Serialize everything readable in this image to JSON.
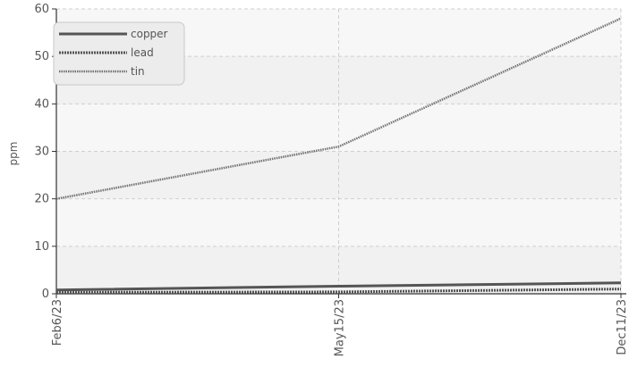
{
  "chart_data": {
    "type": "line",
    "ylabel": "ppm",
    "xlabel": "",
    "ylim": [
      0,
      60
    ],
    "yticks": [
      0,
      10,
      20,
      30,
      40,
      50,
      60
    ],
    "x": [
      "Feb6/23",
      "May15/23",
      "Dec11/23"
    ],
    "grid": true,
    "legend_position": "top-left",
    "series": [
      {
        "name": "copper",
        "values": [
          0.8,
          1.6,
          2.3
        ],
        "color": "#555555",
        "style": "solid"
      },
      {
        "name": "lead",
        "values": [
          0.3,
          0.4,
          1.0
        ],
        "color": "#555555",
        "style": "dotted"
      },
      {
        "name": "tin",
        "values": [
          20,
          31,
          58
        ],
        "color": "#666666",
        "style": "dotted-light"
      }
    ]
  }
}
